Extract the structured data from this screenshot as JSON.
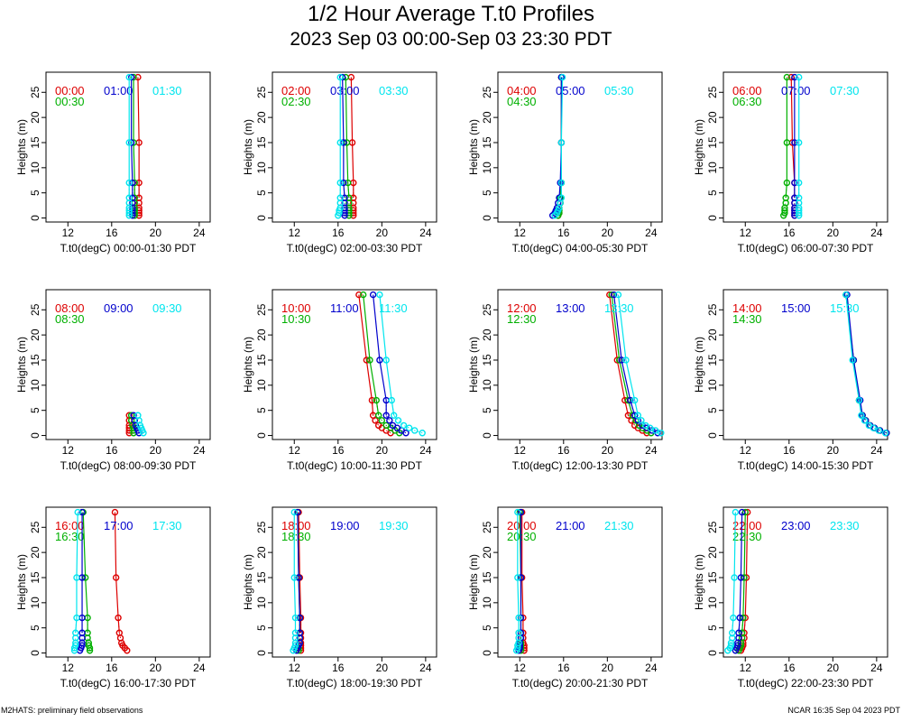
{
  "title": "1/2 Hour Average T.t0 Profiles",
  "subtitle": "2023 Sep 03 00:00-Sep 03 23:30 PDT",
  "footer_left": "M2HATS: preliminary field observations",
  "footer_right": "NCAR 16:35 Sep 04 2023 PDT",
  "colors": {
    "red": "#dd0000",
    "green": "#00b000",
    "blue": "#0000cc",
    "cyan": "#00e5ee"
  },
  "chart_data": [
    {
      "type": "line",
      "xlabel": "T.t0(degC) 00:00-01:30 PDT",
      "ylabel": "Heights (m)",
      "xlim": [
        10,
        25
      ],
      "ylim": [
        0,
        28
      ],
      "xticks": [
        12,
        16,
        20,
        24
      ],
      "yticks": [
        0,
        5,
        10,
        15,
        20,
        25
      ],
      "heights": [
        0.5,
        1,
        1.5,
        2,
        3,
        4,
        7,
        15,
        28
      ],
      "series": [
        {
          "name": "00:00",
          "color": "red",
          "values": [
            18.5,
            18.5,
            18.5,
            18.5,
            18.5,
            18.5,
            18.5,
            18.5,
            18.4
          ]
        },
        {
          "name": "00:30",
          "color": "green",
          "values": [
            18.1,
            18.1,
            18.1,
            18.1,
            18.1,
            18.1,
            18.1,
            18.0,
            18.0
          ]
        },
        {
          "name": "01:00",
          "color": "blue",
          "values": [
            17.9,
            17.9,
            17.9,
            17.9,
            17.9,
            17.9,
            17.9,
            17.8,
            17.8
          ]
        },
        {
          "name": "01:30",
          "color": "cyan",
          "values": [
            17.6,
            17.6,
            17.6,
            17.6,
            17.6,
            17.6,
            17.6,
            17.6,
            17.6
          ]
        }
      ]
    },
    {
      "type": "line",
      "xlabel": "T.t0(degC) 02:00-03:30 PDT",
      "ylabel": "Heights (m)",
      "xlim": [
        10,
        25
      ],
      "ylim": [
        0,
        28
      ],
      "xticks": [
        12,
        16,
        20,
        24
      ],
      "yticks": [
        0,
        5,
        10,
        15,
        20,
        25
      ],
      "heights": [
        0.5,
        1,
        1.5,
        2,
        3,
        4,
        7,
        15,
        28
      ],
      "series": [
        {
          "name": "02:00",
          "color": "red",
          "values": [
            17.4,
            17.4,
            17.4,
            17.4,
            17.4,
            17.4,
            17.4,
            17.3,
            17.2
          ]
        },
        {
          "name": "02:30",
          "color": "green",
          "values": [
            17.0,
            17.0,
            17.0,
            17.0,
            17.0,
            17.0,
            16.9,
            16.8,
            16.7
          ]
        },
        {
          "name": "03:00",
          "color": "blue",
          "values": [
            16.6,
            16.6,
            16.6,
            16.6,
            16.6,
            16.6,
            16.5,
            16.5,
            16.4
          ]
        },
        {
          "name": "03:30",
          "color": "cyan",
          "values": [
            16.0,
            16.1,
            16.1,
            16.2,
            16.2,
            16.2,
            16.2,
            16.2,
            16.2
          ]
        }
      ]
    },
    {
      "type": "line",
      "xlabel": "T.t0(degC) 04:00-05:30 PDT",
      "ylabel": "Heights (m)",
      "xlim": [
        10,
        25
      ],
      "ylim": [
        0,
        28
      ],
      "xticks": [
        12,
        16,
        20,
        24
      ],
      "yticks": [
        0,
        5,
        10,
        15,
        20,
        25
      ],
      "heights": [
        0.5,
        1,
        1.5,
        2,
        3,
        4,
        7,
        15,
        28
      ],
      "series": [
        {
          "name": "04:00",
          "color": "red",
          "values": [
            15.5,
            15.6,
            15.6,
            15.6,
            15.7,
            15.7,
            15.8,
            15.8,
            15.8
          ]
        },
        {
          "name": "04:30",
          "color": "green",
          "values": [
            15.5,
            15.6,
            15.6,
            15.6,
            15.7,
            15.7,
            15.8,
            15.8,
            15.8
          ]
        },
        {
          "name": "05:00",
          "color": "blue",
          "values": [
            15.0,
            15.2,
            15.3,
            15.4,
            15.5,
            15.6,
            15.7,
            15.8,
            15.8
          ]
        },
        {
          "name": "05:30",
          "color": "cyan",
          "values": [
            15.2,
            15.4,
            15.5,
            15.6,
            15.7,
            15.8,
            15.8,
            15.8,
            15.9
          ]
        }
      ]
    },
    {
      "type": "line",
      "xlabel": "T.t0(degC) 06:00-07:30 PDT",
      "ylabel": "Heights (m)",
      "xlim": [
        10,
        25
      ],
      "ylim": [
        0,
        28
      ],
      "xticks": [
        12,
        16,
        20,
        24
      ],
      "yticks": [
        0,
        5,
        10,
        15,
        20,
        25
      ],
      "heights": [
        0.5,
        1,
        1.5,
        2,
        3,
        4,
        7,
        15,
        28
      ],
      "series": [
        {
          "name": "06:00",
          "color": "red",
          "values": [
            16.5,
            16.5,
            16.5,
            16.5,
            16.5,
            16.5,
            16.5,
            16.3,
            16.2
          ]
        },
        {
          "name": "06:30",
          "color": "green",
          "values": [
            15.5,
            15.6,
            15.6,
            15.6,
            15.7,
            15.7,
            15.8,
            15.8,
            15.8
          ]
        },
        {
          "name": "07:00",
          "color": "blue",
          "values": [
            16.5,
            16.5,
            16.5,
            16.5,
            16.5,
            16.5,
            16.5,
            16.5,
            16.5
          ]
        },
        {
          "name": "07:30",
          "color": "cyan",
          "values": [
            16.9,
            16.9,
            16.9,
            16.9,
            16.9,
            16.9,
            16.9,
            16.9,
            16.9
          ]
        }
      ]
    },
    {
      "type": "line",
      "xlabel": "T.t0(degC) 08:00-09:30 PDT",
      "ylabel": "Heights (m)",
      "xlim": [
        10,
        25
      ],
      "ylim": [
        0,
        28
      ],
      "xticks": [
        12,
        16,
        20,
        24
      ],
      "yticks": [
        0,
        5,
        10,
        15,
        20,
        25
      ],
      "heights": [
        0.5,
        1,
        1.5,
        2,
        3,
        4
      ],
      "series": [
        {
          "name": "08:00",
          "color": "red",
          "values": [
            17.6,
            17.6,
            17.6,
            17.6,
            17.6,
            17.6
          ]
        },
        {
          "name": "08:30",
          "color": "green",
          "values": [
            18.0,
            18.0,
            18.0,
            17.9,
            17.8,
            17.8
          ]
        },
        {
          "name": "09:00",
          "color": "blue",
          "values": [
            18.5,
            18.4,
            18.3,
            18.2,
            18.1,
            18.0
          ]
        },
        {
          "name": "09:30",
          "color": "cyan",
          "values": [
            18.9,
            18.8,
            18.7,
            18.6,
            18.5,
            18.4
          ]
        }
      ]
    },
    {
      "type": "line",
      "xlabel": "T.t0(degC) 10:00-11:30 PDT",
      "ylabel": "Heights (m)",
      "xlim": [
        10,
        25
      ],
      "ylim": [
        0,
        28
      ],
      "xticks": [
        12,
        16,
        20,
        24
      ],
      "yticks": [
        0,
        5,
        10,
        15,
        20,
        25
      ],
      "heights": [
        0.5,
        1,
        1.5,
        2,
        3,
        4,
        7,
        15,
        28
      ],
      "series": [
        {
          "name": "10:00",
          "color": "red",
          "values": [
            20.8,
            20.4,
            20.0,
            19.7,
            19.4,
            19.2,
            19.1,
            18.6,
            17.9
          ]
        },
        {
          "name": "10:30",
          "color": "green",
          "values": [
            21.6,
            21.2,
            20.8,
            20.4,
            20.0,
            19.7,
            19.5,
            18.9,
            18.3
          ]
        },
        {
          "name": "11:00",
          "color": "blue",
          "values": [
            22.2,
            21.8,
            21.4,
            21.0,
            20.7,
            20.4,
            20.4,
            19.8,
            19.2
          ]
        },
        {
          "name": "11:30",
          "color": "cyan",
          "values": [
            23.7,
            23.0,
            22.5,
            22.0,
            21.5,
            21.1,
            20.9,
            20.4,
            19.8
          ]
        }
      ]
    },
    {
      "type": "line",
      "xlabel": "T.t0(degC) 12:00-13:30 PDT",
      "ylabel": "Heights (m)",
      "xlim": [
        10,
        25
      ],
      "ylim": [
        0,
        28
      ],
      "xticks": [
        12,
        16,
        20,
        24
      ],
      "yticks": [
        0,
        5,
        10,
        15,
        20,
        25
      ],
      "heights": [
        0.5,
        1,
        1.5,
        2,
        3,
        4,
        7,
        15,
        28
      ],
      "series": [
        {
          "name": "12:00",
          "color": "red",
          "values": [
            23.6,
            23.2,
            22.8,
            22.5,
            22.2,
            21.9,
            21.6,
            20.9,
            20.2
          ]
        },
        {
          "name": "12:30",
          "color": "green",
          "values": [
            24.0,
            23.6,
            23.2,
            22.9,
            22.6,
            22.3,
            21.9,
            21.1,
            20.4
          ]
        },
        {
          "name": "13:00",
          "color": "blue",
          "values": [
            24.6,
            24.1,
            23.6,
            23.2,
            22.8,
            22.5,
            22.1,
            21.3,
            20.6
          ]
        },
        {
          "name": "13:30",
          "color": "cyan",
          "values": [
            24.9,
            24.4,
            23.9,
            23.5,
            23.1,
            22.8,
            22.5,
            21.7,
            21.0
          ]
        }
      ]
    },
    {
      "type": "line",
      "xlabel": "T.t0(degC) 14:00-15:30 PDT",
      "ylabel": "Heights (m)",
      "xlim": [
        10,
        25
      ],
      "ylim": [
        0,
        28
      ],
      "xticks": [
        12,
        16,
        20,
        24
      ],
      "yticks": [
        0,
        5,
        10,
        15,
        20,
        25
      ],
      "heights": [
        0.5,
        1,
        1.5,
        2,
        3,
        4,
        7,
        15,
        28
      ],
      "series": [
        {
          "name": "14:00",
          "color": "red",
          "values": [
            24.9,
            24.3,
            23.8,
            23.4,
            23.0,
            22.7,
            22.4,
            21.9,
            21.2
          ]
        },
        {
          "name": "14:30",
          "color": "green",
          "values": [
            24.9,
            24.3,
            23.8,
            23.4,
            23.0,
            22.7,
            22.4,
            21.9,
            21.2
          ]
        },
        {
          "name": "15:00",
          "color": "blue",
          "values": [
            24.9,
            24.3,
            23.8,
            23.4,
            23.0,
            22.7,
            22.5,
            21.9,
            21.3
          ]
        },
        {
          "name": "15:30",
          "color": "cyan",
          "values": [
            24.8,
            24.2,
            23.7,
            23.3,
            22.9,
            22.6,
            22.4,
            21.8,
            21.2
          ]
        }
      ]
    },
    {
      "type": "line",
      "xlabel": "T.t0(degC) 16:00-17:30 PDT",
      "ylabel": "Heights (m)",
      "xlim": [
        10,
        25
      ],
      "ylim": [
        0,
        28
      ],
      "xticks": [
        12,
        16,
        20,
        24
      ],
      "yticks": [
        0,
        5,
        10,
        15,
        20,
        25
      ],
      "heights": [
        0.5,
        1,
        1.5,
        2,
        3,
        4,
        7,
        15,
        28
      ],
      "series": [
        {
          "name": "16:00",
          "color": "red",
          "values": [
            17.4,
            17.2,
            17.0,
            16.9,
            16.8,
            16.7,
            16.6,
            16.4,
            16.3
          ]
        },
        {
          "name": "16:30",
          "color": "green",
          "values": [
            14.0,
            14.0,
            13.9,
            13.9,
            13.8,
            13.8,
            13.8,
            13.6,
            13.4
          ]
        },
        {
          "name": "17:00",
          "color": "blue",
          "values": [
            13.1,
            13.2,
            13.3,
            13.3,
            13.3,
            13.3,
            13.3,
            13.3,
            13.3
          ]
        },
        {
          "name": "17:30",
          "color": "cyan",
          "values": [
            12.6,
            12.6,
            12.7,
            12.7,
            12.7,
            12.7,
            12.8,
            12.8,
            12.9
          ]
        }
      ]
    },
    {
      "type": "line",
      "xlabel": "T.t0(degC) 18:00-19:30 PDT",
      "ylabel": "Heights (m)",
      "xlim": [
        10,
        25
      ],
      "ylim": [
        0,
        28
      ],
      "xticks": [
        12,
        16,
        20,
        24
      ],
      "yticks": [
        0,
        5,
        10,
        15,
        20,
        25
      ],
      "heights": [
        0.5,
        1,
        1.5,
        2,
        3,
        4,
        7,
        15,
        28
      ],
      "series": [
        {
          "name": "18:00",
          "color": "red",
          "values": [
            12.6,
            12.6,
            12.6,
            12.6,
            12.6,
            12.6,
            12.6,
            12.5,
            12.4
          ]
        },
        {
          "name": "18:30",
          "color": "green",
          "values": [
            12.4,
            12.4,
            12.4,
            12.5,
            12.5,
            12.5,
            12.5,
            12.4,
            12.3
          ]
        },
        {
          "name": "19:00",
          "color": "blue",
          "values": [
            12.2,
            12.3,
            12.4,
            12.5,
            12.5,
            12.5,
            12.5,
            12.4,
            12.3
          ]
        },
        {
          "name": "19:30",
          "color": "cyan",
          "values": [
            11.9,
            12.0,
            12.1,
            12.1,
            12.1,
            12.1,
            12.1,
            12.0,
            12.0
          ]
        }
      ]
    },
    {
      "type": "line",
      "xlabel": "T.t0(degC) 20:00-21:30 PDT",
      "ylabel": "Heights (m)",
      "xlim": [
        10,
        25
      ],
      "ylim": [
        0,
        28
      ],
      "xticks": [
        12,
        16,
        20,
        24
      ],
      "yticks": [
        0,
        5,
        10,
        15,
        20,
        25
      ],
      "heights": [
        0.5,
        1,
        1.5,
        2,
        3,
        4,
        7,
        15,
        28
      ],
      "series": [
        {
          "name": "20:00",
          "color": "red",
          "values": [
            12.4,
            12.4,
            12.4,
            12.3,
            12.3,
            12.3,
            12.3,
            12.2,
            12.2
          ]
        },
        {
          "name": "20:30",
          "color": "green",
          "values": [
            12.1,
            12.1,
            12.1,
            12.1,
            12.1,
            12.1,
            12.1,
            12.1,
            12.0
          ]
        },
        {
          "name": "21:00",
          "color": "blue",
          "values": [
            11.9,
            12.0,
            12.0,
            12.0,
            12.1,
            12.1,
            12.1,
            12.1,
            12.1
          ]
        },
        {
          "name": "21:30",
          "color": "cyan",
          "values": [
            11.7,
            11.8,
            11.8,
            11.9,
            11.9,
            11.9,
            11.9,
            11.8,
            11.8
          ]
        }
      ]
    },
    {
      "type": "line",
      "xlabel": "T.t0(degC) 22:00-23:30 PDT",
      "ylabel": "Heights (m)",
      "xlim": [
        10,
        25
      ],
      "ylim": [
        0,
        28
      ],
      "xticks": [
        12,
        16,
        20,
        24
      ],
      "yticks": [
        0,
        5,
        10,
        15,
        20,
        25
      ],
      "heights": [
        0.5,
        1,
        1.5,
        2,
        3,
        4,
        7,
        15,
        28
      ],
      "series": [
        {
          "name": "22:00",
          "color": "red",
          "values": [
            11.6,
            11.7,
            11.8,
            11.8,
            11.9,
            11.9,
            12.0,
            12.1,
            12.2
          ]
        },
        {
          "name": "22:30",
          "color": "green",
          "values": [
            11.4,
            11.5,
            11.6,
            11.6,
            11.7,
            11.7,
            11.8,
            11.9,
            12.0
          ]
        },
        {
          "name": "23:00",
          "color": "blue",
          "values": [
            11.1,
            11.2,
            11.3,
            11.3,
            11.4,
            11.4,
            11.5,
            11.6,
            11.7
          ]
        },
        {
          "name": "23:30",
          "color": "cyan",
          "values": [
            10.4,
            10.6,
            10.7,
            10.7,
            10.8,
            10.8,
            10.9,
            11.0,
            11.1
          ]
        }
      ]
    }
  ]
}
